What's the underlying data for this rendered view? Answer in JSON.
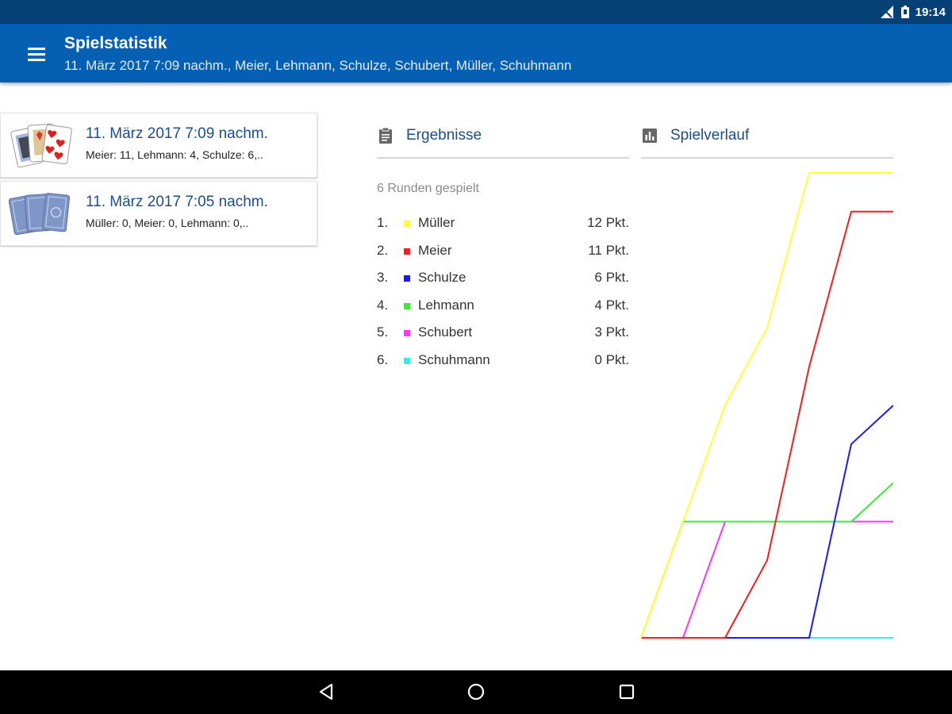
{
  "status_bar": {
    "time": "19:14",
    "icons": [
      "signal-icon",
      "battery-icon"
    ]
  },
  "app_bar": {
    "title": "Spielstatistik",
    "subtitle": "11. März 2017 7:09 nachm., Meier, Lehmann, Schulze, Schubert, Müller, Schuhmann",
    "menu_icon": "menu-icon"
  },
  "games": [
    {
      "date": "11. März 2017 7:09 nachm.",
      "scores": "Meier: 11, Lehmann: 4, Schulze: 6,..",
      "thumb": "playing-cards-face-icon"
    },
    {
      "date": "11. März 2017 7:05 nachm.",
      "scores": "Müller: 0, Meier: 0, Lehmann: 0,..",
      "thumb": "playing-cards-back-icon"
    }
  ],
  "results": {
    "header": "Ergebnisse",
    "header_icon": "clipboard-icon",
    "rounds": "6 Runden gespielt",
    "ranking": [
      {
        "rank": "1.",
        "name": "Müller",
        "points": "12 Pkt.",
        "color": "#ffff33"
      },
      {
        "rank": "2.",
        "name": "Meier",
        "points": "11 Pkt.",
        "color": "#ff1a1a"
      },
      {
        "rank": "3.",
        "name": "Schulze",
        "points": "6 Pkt.",
        "color": "#1a1aff"
      },
      {
        "rank": "4.",
        "name": "Lehmann",
        "points": "4 Pkt.",
        "color": "#33ee33"
      },
      {
        "rank": "5.",
        "name": "Schubert",
        "points": "3 Pkt.",
        "color": "#ff33ff"
      },
      {
        "rank": "6.",
        "name": "Schuhmann",
        "points": "0 Pkt.",
        "color": "#33eeee"
      }
    ]
  },
  "chart_section": {
    "header": "Spielverlauf",
    "header_icon": "bar-chart-icon"
  },
  "chart_data": {
    "type": "line",
    "x": [
      0,
      1,
      2,
      3,
      4,
      5,
      6
    ],
    "ylim": [
      0,
      12
    ],
    "grid": false,
    "series": [
      {
        "values": [
          0,
          3,
          6,
          8,
          12,
          12,
          12
        ],
        "color": "#ffff33"
      },
      {
        "values": [
          0,
          0,
          0,
          2,
          7,
          11,
          11
        ],
        "color": "#ff1a1a"
      },
      {
        "values": [
          0,
          0,
          0,
          0,
          0,
          5,
          6
        ],
        "color": "#1a1aff"
      },
      {
        "values": [
          0,
          3,
          3,
          3,
          3,
          3,
          4
        ],
        "color": "#33ee33"
      },
      {
        "values": [
          0,
          0,
          3,
          3,
          3,
          3,
          3
        ],
        "color": "#ff33ff"
      },
      {
        "values": [
          0,
          0,
          0,
          0,
          0,
          0,
          0
        ],
        "color": "#33eeee"
      }
    ]
  },
  "nav_bar": {
    "buttons": [
      "back-icon",
      "home-icon",
      "recents-icon"
    ]
  }
}
